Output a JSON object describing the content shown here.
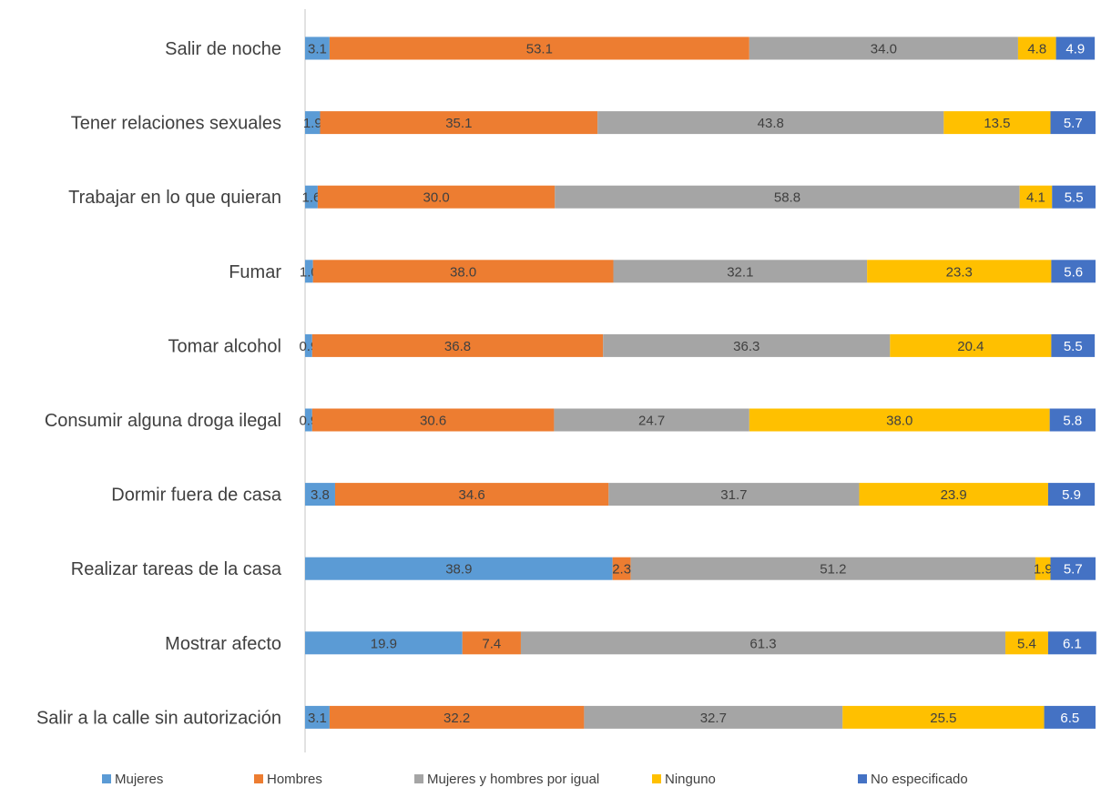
{
  "chart_data": {
    "type": "bar",
    "orientation": "horizontal",
    "stacked": true,
    "xlim": [
      0,
      100
    ],
    "grid": false,
    "legend_position": "bottom",
    "categories": [
      "Salir de noche",
      "Tener relaciones sexuales",
      "Trabajar en lo que quieran",
      "Fumar",
      "Tomar alcohol",
      "Consumir alguna droga ilegal",
      "Dormir fuera de casa",
      "Realizar tareas de la casa",
      "Mostrar afecto",
      "Salir a la calle sin autorización"
    ],
    "series": [
      {
        "name": "Mujeres",
        "color": "#5B9BD5",
        "values": [
          3.1,
          1.9,
          1.6,
          1.0,
          0.9,
          0.9,
          3.8,
          38.9,
          19.9,
          3.1
        ]
      },
      {
        "name": "Hombres",
        "color": "#ED7D31",
        "values": [
          53.1,
          35.1,
          30.0,
          38.0,
          36.8,
          30.6,
          34.6,
          2.3,
          7.4,
          32.2
        ]
      },
      {
        "name": "Mujeres y hombres por igual",
        "color": "#A5A5A5",
        "values": [
          34.0,
          43.8,
          58.8,
          32.1,
          36.3,
          24.7,
          31.7,
          51.2,
          61.3,
          32.7
        ]
      },
      {
        "name": "Ninguno",
        "color": "#FFC000",
        "values": [
          4.8,
          13.5,
          4.1,
          23.3,
          20.4,
          38.0,
          23.9,
          1.9,
          5.4,
          25.5
        ]
      },
      {
        "name": "No especificado",
        "color": "#4472C4",
        "values": [
          4.9,
          5.7,
          5.5,
          5.6,
          5.5,
          5.8,
          5.9,
          5.7,
          6.1,
          6.5
        ]
      }
    ]
  }
}
